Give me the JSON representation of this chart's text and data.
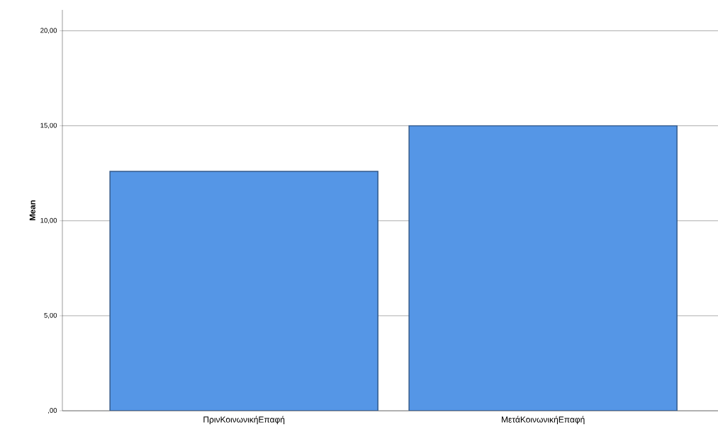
{
  "chart_data": {
    "type": "bar",
    "ylabel": "Mean",
    "categories": [
      "ΠρινΚοινωνικήΕπαφή",
      "ΜετάΚοινωνικήΕπαφή"
    ],
    "values": [
      12.6,
      15.0
    ],
    "color": "#5596e6",
    "ylim": [
      0,
      21.1
    ],
    "yticks": [
      {
        "value": 0,
        "label": ",00"
      },
      {
        "value": 5,
        "label": "5,00"
      },
      {
        "value": 10,
        "label": "10,00"
      },
      {
        "value": 15,
        "label": "15,00"
      },
      {
        "value": 20,
        "label": "20,00"
      }
    ],
    "grid": "y"
  }
}
